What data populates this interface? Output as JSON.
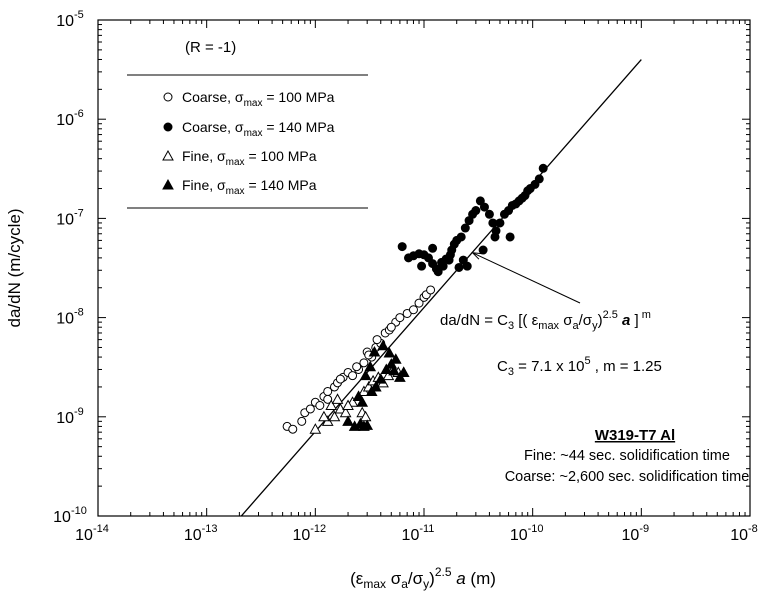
{
  "chart_data": {
    "type": "scatter",
    "xscale": "log",
    "yscale": "log",
    "xlim": [
      1e-14,
      1e-08
    ],
    "ylim": [
      1e-10,
      1e-05
    ],
    "grid": false,
    "xticks": [
      {
        "value": 1e-14,
        "base": "10",
        "exp": "-14"
      },
      {
        "value": 1e-13,
        "base": "10",
        "exp": "-13"
      },
      {
        "value": 1e-12,
        "base": "10",
        "exp": "-12"
      },
      {
        "value": 1e-11,
        "base": "10",
        "exp": "-11"
      },
      {
        "value": 1e-10,
        "base": "10",
        "exp": "-10"
      },
      {
        "value": 1e-09,
        "base": "10",
        "exp": "-9"
      },
      {
        "value": 1e-08,
        "base": "10",
        "exp": "-8"
      }
    ],
    "yticks": [
      {
        "value": 1e-10,
        "base": "10",
        "exp": "-10"
      },
      {
        "value": 1e-09,
        "base": "10",
        "exp": "-9"
      },
      {
        "value": 1e-08,
        "base": "10",
        "exp": "-8"
      },
      {
        "value": 1e-07,
        "base": "10",
        "exp": "-7"
      },
      {
        "value": 1e-06,
        "base": "10",
        "exp": "-6"
      },
      {
        "value": 1e-05,
        "base": "10",
        "exp": "-5"
      }
    ],
    "xlabel": {
      "pre": "(ε",
      "sub1": "max",
      "mid": " σ",
      "sub2": "a",
      "mid2": "/σ",
      "sub3": "y",
      "mid3": ")",
      "sup": "2.5",
      "italic": " a",
      "post": " (m)"
    },
    "ylabel": "da/dN (m/cycle)",
    "legend": {
      "title": "(R = -1)",
      "placement": "top-left",
      "entries": [
        {
          "marker": "circle-open",
          "pre": "Coarse, σ",
          "sub": "max",
          "post": " = 100 MPa"
        },
        {
          "marker": "circle-filled",
          "pre": "Coarse, σ",
          "sub": "max",
          "post": " = 140 MPa"
        },
        {
          "marker": "triangle-open",
          "pre": "Fine, σ",
          "sub": "max",
          "post": " = 100 MPa"
        },
        {
          "marker": "triangle-filled",
          "pre": "Fine, σ",
          "sub": "max",
          "post": " = 140 MPa"
        }
      ]
    },
    "fit_line": {
      "C3": 710000.0,
      "m": 1.25,
      "x": [
        2e-13,
        1e-09
      ]
    },
    "annotation_equation": {
      "part1": "da/dN = C",
      "sub1": "3",
      "part2": " [( ε",
      "sub2": "max",
      "part3": " σ",
      "sub3": "a",
      "part4": "/σ",
      "sub4": "y",
      "part5": ")",
      "sup1": "2.5",
      "italic": " a",
      "part6": " ]",
      "sup2": " m",
      "arrow_target": [
        2.8e-11,
        4.5e-08
      ]
    },
    "annotation_constants": {
      "pre": "C",
      "sub": "3",
      "mid": " = 7.1 x 10",
      "sup": "5",
      "post": " ,  m = 1.25"
    },
    "material_box": {
      "title": "W319-T7 Al",
      "line1": "Fine: ~44 sec. solidification time",
      "line2": "Coarse: ~2,600 sec. solidification time"
    },
    "series": [
      {
        "name": "Coarse, σmax = 100 MPa",
        "marker": "circle-open",
        "x": [
          5.5e-13,
          6.2e-13,
          7.5e-13,
          8e-13,
          9e-13,
          1e-12,
          1.1e-12,
          1.2e-12,
          1.3e-12,
          1.5e-12,
          1.6e-12,
          1.8e-12,
          2e-12,
          2.2e-12,
          2.5e-12,
          2.8e-12,
          3e-12,
          3.3e-12,
          3.6e-12,
          4e-12,
          4.4e-12,
          4.8e-12,
          5.5e-12,
          6e-12,
          7e-12,
          8e-12,
          9e-12,
          1e-11,
          1.05e-11,
          1.15e-11,
          1.3e-12,
          1.7e-12,
          2.4e-12,
          3.1e-12,
          3.7e-12,
          5e-12
        ],
        "y": [
          8e-10,
          7.5e-10,
          9e-10,
          1.1e-09,
          1.2e-09,
          1.4e-09,
          1.3e-09,
          1.6e-09,
          1.8e-09,
          2e-09,
          2.2e-09,
          2.5e-09,
          2.8e-09,
          2.6e-09,
          3e-09,
          3.5e-09,
          4.5e-09,
          4e-09,
          5e-09,
          5.5e-09,
          7e-09,
          7.5e-09,
          9e-09,
          1e-08,
          1.1e-08,
          1.2e-08,
          1.4e-08,
          1.6e-08,
          1.7e-08,
          1.9e-08,
          1.5e-09,
          2.4e-09,
          3.2e-09,
          4.2e-09,
          6e-09,
          8e-09
        ]
      },
      {
        "name": "Coarse, σmax = 140 MPa",
        "marker": "circle-filled",
        "x": [
          6.3e-12,
          7.2e-12,
          8e-12,
          9e-12,
          1e-11,
          1.1e-11,
          1.2e-11,
          1.3e-11,
          1.45e-11,
          1.6e-11,
          1.75e-11,
          1.9e-11,
          2e-11,
          2.2e-11,
          2.4e-11,
          2.6e-11,
          2.8e-11,
          3e-11,
          3.3e-11,
          3.6e-11,
          4e-11,
          4.3e-11,
          4.6e-11,
          5e-11,
          5.5e-11,
          6e-11,
          6.5e-11,
          7e-11,
          7.5e-11,
          8e-11,
          8.5e-11,
          9e-11,
          9.5e-11,
          1.05e-10,
          1.15e-10,
          1.25e-10,
          1.5e-11,
          1.7e-11,
          2.1e-11,
          2.5e-11,
          3.5e-11,
          4.5e-11,
          6.2e-11,
          1.2e-11,
          9.5e-12,
          1.35e-11,
          1.8e-11,
          2.3e-11
        ],
        "y": [
          5.2e-08,
          4e-08,
          4.2e-08,
          4.4e-08,
          4.3e-08,
          4e-08,
          3.5e-08,
          3.1e-08,
          3.6e-08,
          3.9e-08,
          4.3e-08,
          5.5e-08,
          6e-08,
          6.5e-08,
          8e-08,
          9.5e-08,
          1.1e-07,
          1.2e-07,
          1.5e-07,
          1.3e-07,
          1.1e-07,
          9e-08,
          7.5e-08,
          9e-08,
          1.1e-07,
          1.2e-07,
          1.35e-07,
          1.4e-07,
          1.5e-07,
          1.6e-07,
          1.7e-07,
          1.9e-07,
          2e-07,
          2.2e-07,
          2.5e-07,
          3.2e-07,
          3.3e-08,
          3.8e-08,
          3.2e-08,
          3.3e-08,
          4.8e-08,
          6.5e-08,
          6.5e-08,
          5e-08,
          3.3e-08,
          2.9e-08,
          4.8e-08,
          3.8e-08
        ]
      },
      {
        "name": "Fine, σmax = 100 MPa",
        "marker": "triangle-open",
        "x": [
          1e-12,
          1.3e-12,
          1.5e-12,
          1.7e-12,
          1.9e-12,
          2.2e-12,
          2.5e-12,
          2.8e-12,
          3.1e-12,
          3.4e-12,
          3.8e-12,
          4.2e-12,
          4.7e-12,
          5.2e-12,
          5.8e-12,
          6.5e-12,
          1.2e-12,
          1.4e-12,
          1.6e-12,
          2e-12,
          2.7e-12,
          2.9e-12
        ],
        "y": [
          7.5e-10,
          9e-10,
          1e-09,
          1.2e-09,
          1.1e-09,
          1.4e-09,
          1.6e-09,
          1.8e-09,
          2e-09,
          2.3e-09,
          2.5e-09,
          2.2e-09,
          2.6e-09,
          3e-09,
          2.8e-09,
          2.8e-09,
          1e-09,
          1.3e-09,
          1.5e-09,
          1.3e-09,
          1.1e-09,
          1e-09
        ]
      },
      {
        "name": "Fine, σmax = 140 MPa",
        "marker": "triangle-filled",
        "x": [
          2e-12,
          2.3e-12,
          2.6e-12,
          2.8e-12,
          3e-12,
          3.3e-12,
          3.6e-12,
          4e-12,
          4.5e-12,
          5e-12,
          5.5e-12,
          6e-12,
          6.5e-12,
          2.5e-12,
          2.9e-12,
          3.2e-12,
          3.5e-12,
          4.2e-12,
          4.8e-12,
          5.3e-12,
          2.7e-12
        ],
        "y": [
          9e-10,
          8e-10,
          8.5e-10,
          8e-10,
          8.2e-10,
          1.8e-09,
          2e-09,
          2.4e-09,
          3e-09,
          3.4e-09,
          3.8e-09,
          2.5e-09,
          2.8e-09,
          1.6e-09,
          2.6e-09,
          3.2e-09,
          4.5e-09,
          5.2e-09,
          4.4e-09,
          2.9e-09,
          1.4e-09
        ]
      }
    ]
  }
}
